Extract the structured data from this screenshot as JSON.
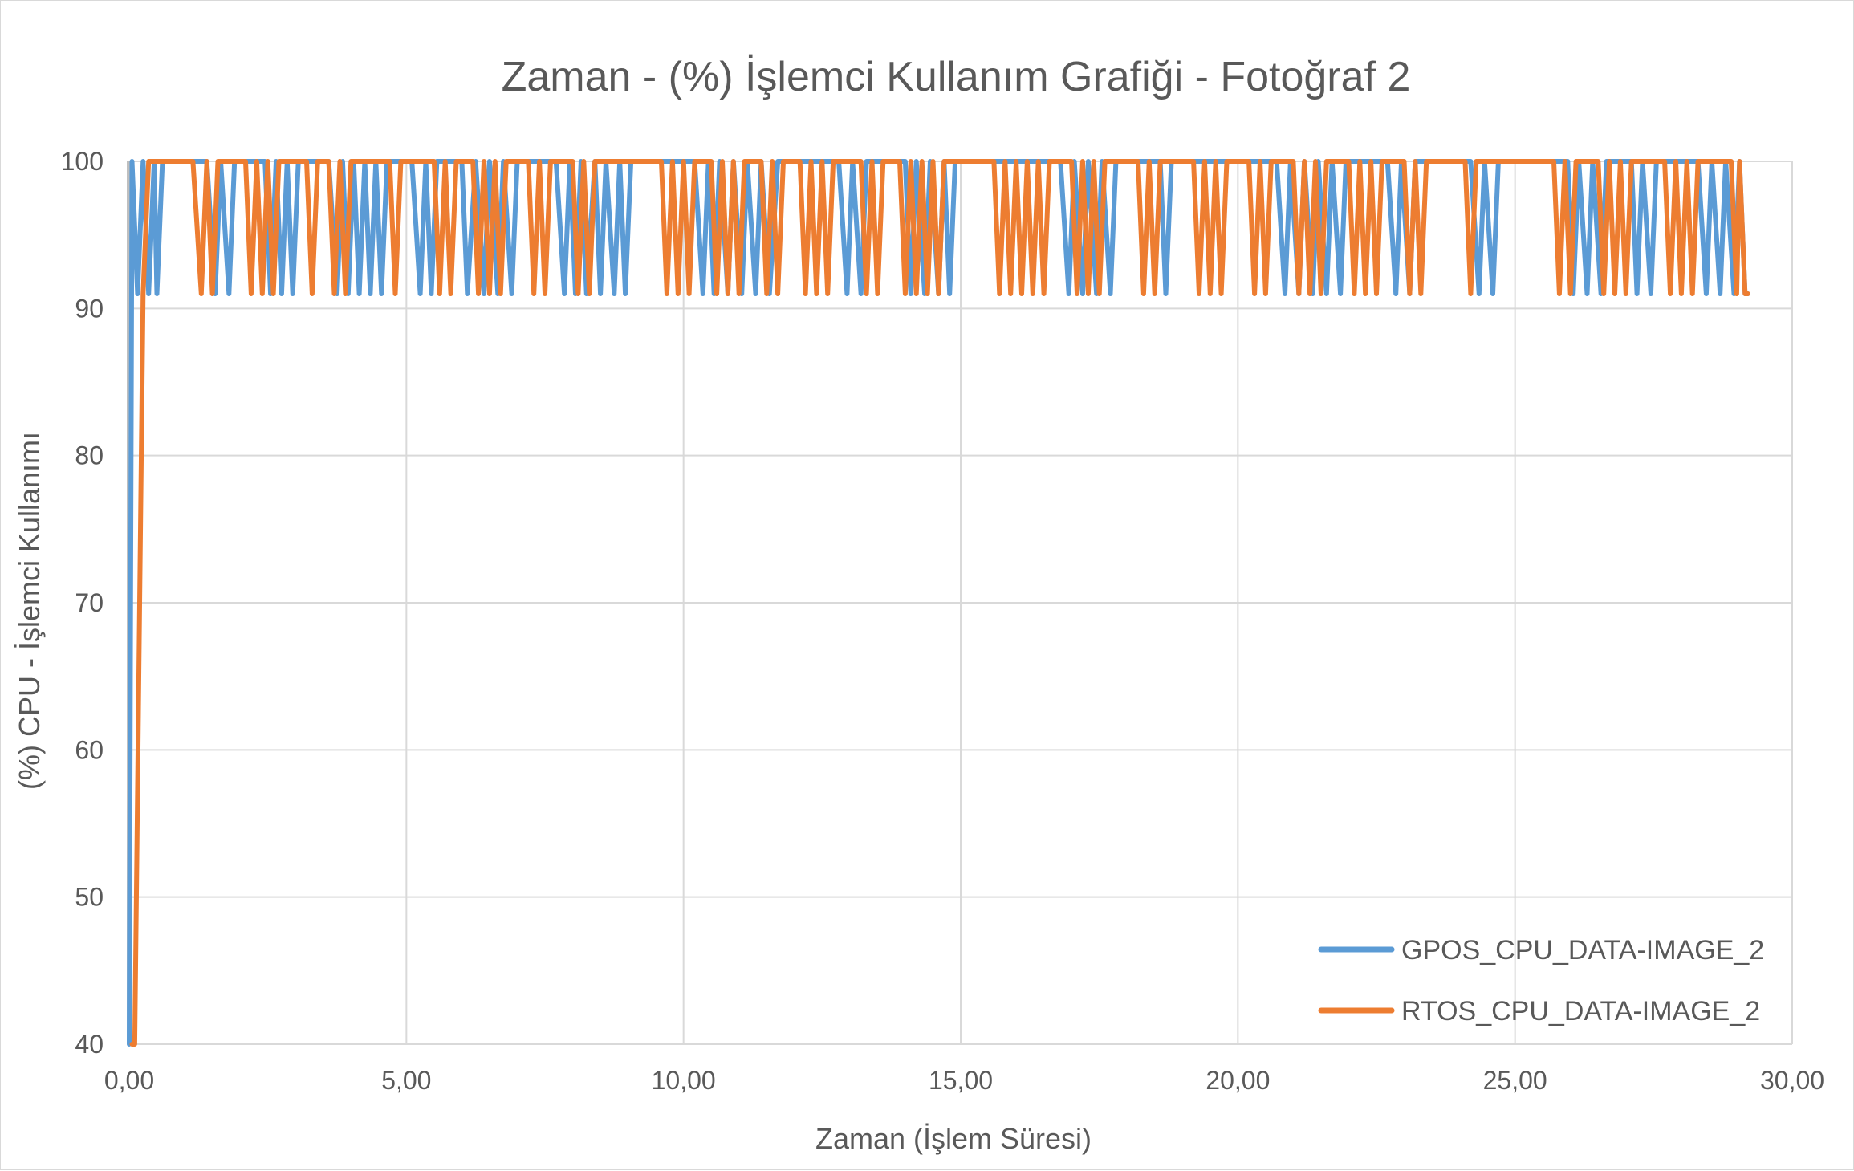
{
  "chart_data": {
    "type": "line",
    "title": "Zaman - (%) İşlemci Kullanım Grafiği - Fotoğraf 2",
    "xlabel": "Zaman (İşlem Süresi)",
    "ylabel": "(%) CPU - İşlemci Kullanımı",
    "xlim": [
      0,
      30
    ],
    "ylim": [
      40,
      100
    ],
    "x_ticks": [
      "0,00",
      "5,00",
      "10,00",
      "15,00",
      "20,00",
      "25,00",
      "30,00"
    ],
    "y_ticks": [
      "40",
      "50",
      "60",
      "70",
      "80",
      "90",
      "100"
    ],
    "grid": true,
    "legend_position": "bottom-right",
    "series": [
      {
        "name": "GPOS_CPU_DATA-IMAGE_2",
        "color": "#5b9bd5",
        "points": [
          [
            0.0,
            40
          ],
          [
            0.05,
            100
          ],
          [
            0.15,
            91
          ],
          [
            0.25,
            100
          ],
          [
            0.35,
            91
          ],
          [
            0.45,
            100
          ],
          [
            0.5,
            91
          ],
          [
            0.6,
            100
          ],
          [
            1.4,
            100
          ],
          [
            1.55,
            91
          ],
          [
            1.65,
            100
          ],
          [
            1.8,
            91
          ],
          [
            1.9,
            100
          ],
          [
            2.0,
            100
          ],
          [
            2.45,
            100
          ],
          [
            2.55,
            91
          ],
          [
            2.65,
            100
          ],
          [
            2.75,
            91
          ],
          [
            2.85,
            100
          ],
          [
            2.95,
            91
          ],
          [
            3.05,
            100
          ],
          [
            3.6,
            100
          ],
          [
            3.75,
            91
          ],
          [
            3.85,
            100
          ],
          [
            3.95,
            91
          ],
          [
            4.05,
            100
          ],
          [
            4.15,
            91
          ],
          [
            4.25,
            100
          ],
          [
            4.35,
            91
          ],
          [
            4.45,
            100
          ],
          [
            4.55,
            91
          ],
          [
            4.65,
            100
          ],
          [
            5.1,
            100
          ],
          [
            5.25,
            91
          ],
          [
            5.35,
            100
          ],
          [
            5.45,
            91
          ],
          [
            5.55,
            100
          ],
          [
            6.0,
            100
          ],
          [
            6.1,
            91
          ],
          [
            6.25,
            100
          ],
          [
            6.4,
            91
          ],
          [
            6.5,
            100
          ],
          [
            6.65,
            91
          ],
          [
            6.75,
            100
          ],
          [
            6.9,
            91
          ],
          [
            7.0,
            100
          ],
          [
            7.7,
            100
          ],
          [
            7.85,
            91
          ],
          [
            7.95,
            100
          ],
          [
            8.05,
            91
          ],
          [
            8.15,
            100
          ],
          [
            8.25,
            91
          ],
          [
            8.4,
            100
          ],
          [
            8.5,
            91
          ],
          [
            8.6,
            100
          ],
          [
            8.75,
            91
          ],
          [
            8.85,
            100
          ],
          [
            8.95,
            91
          ],
          [
            9.05,
            100
          ],
          [
            10.2,
            100
          ],
          [
            10.35,
            91
          ],
          [
            10.45,
            100
          ],
          [
            10.55,
            91
          ],
          [
            10.65,
            100
          ],
          [
            10.8,
            91
          ],
          [
            10.9,
            100
          ],
          [
            11.05,
            91
          ],
          [
            11.15,
            100
          ],
          [
            11.3,
            91
          ],
          [
            11.4,
            100
          ],
          [
            11.55,
            91
          ],
          [
            11.7,
            100
          ],
          [
            12.8,
            100
          ],
          [
            12.95,
            91
          ],
          [
            13.05,
            100
          ],
          [
            13.2,
            91
          ],
          [
            13.3,
            100
          ],
          [
            14.0,
            100
          ],
          [
            14.1,
            91
          ],
          [
            14.2,
            100
          ],
          [
            14.35,
            91
          ],
          [
            14.45,
            100
          ],
          [
            14.6,
            91
          ],
          [
            14.7,
            100
          ],
          [
            14.8,
            91
          ],
          [
            14.9,
            100
          ],
          [
            16.8,
            100
          ],
          [
            16.95,
            91
          ],
          [
            17.05,
            100
          ],
          [
            17.2,
            91
          ],
          [
            17.3,
            100
          ],
          [
            17.45,
            91
          ],
          [
            17.55,
            100
          ],
          [
            17.7,
            91
          ],
          [
            17.8,
            100
          ],
          [
            18.6,
            100
          ],
          [
            18.7,
            91
          ],
          [
            18.8,
            100
          ],
          [
            20.7,
            100
          ],
          [
            20.85,
            91
          ],
          [
            20.95,
            100
          ],
          [
            21.1,
            91
          ],
          [
            21.2,
            100
          ],
          [
            21.35,
            91
          ],
          [
            21.45,
            100
          ],
          [
            21.6,
            91
          ],
          [
            21.7,
            100
          ],
          [
            21.85,
            91
          ],
          [
            21.95,
            100
          ],
          [
            22.7,
            100
          ],
          [
            22.85,
            91
          ],
          [
            22.95,
            100
          ],
          [
            23.1,
            91
          ],
          [
            23.2,
            100
          ],
          [
            24.2,
            100
          ],
          [
            24.35,
            91
          ],
          [
            24.45,
            100
          ],
          [
            24.6,
            91
          ],
          [
            24.7,
            100
          ],
          [
            25.95,
            100
          ],
          [
            26.05,
            91
          ],
          [
            26.15,
            100
          ],
          [
            26.3,
            91
          ],
          [
            26.4,
            100
          ],
          [
            26.55,
            91
          ],
          [
            26.65,
            100
          ],
          [
            27.1,
            100
          ],
          [
            27.2,
            91
          ],
          [
            27.3,
            100
          ],
          [
            27.45,
            91
          ],
          [
            27.55,
            100
          ],
          [
            28.3,
            100
          ],
          [
            28.45,
            91
          ],
          [
            28.55,
            100
          ],
          [
            28.7,
            91
          ],
          [
            28.8,
            100
          ],
          [
            28.95,
            91
          ],
          [
            29.05,
            100
          ],
          [
            29.15,
            91
          ],
          [
            29.2,
            91
          ]
        ]
      },
      {
        "name": "RTOS_CPU_DATA-IMAGE_2",
        "color": "#ed7d31",
        "points": [
          [
            0.05,
            40
          ],
          [
            0.1,
            40
          ],
          [
            0.25,
            91
          ],
          [
            0.35,
            100
          ],
          [
            1.15,
            100
          ],
          [
            1.3,
            91
          ],
          [
            1.4,
            100
          ],
          [
            1.5,
            91
          ],
          [
            1.6,
            100
          ],
          [
            2.1,
            100
          ],
          [
            2.2,
            91
          ],
          [
            2.3,
            100
          ],
          [
            2.4,
            91
          ],
          [
            2.5,
            100
          ],
          [
            2.6,
            91
          ],
          [
            2.7,
            100
          ],
          [
            3.2,
            100
          ],
          [
            3.3,
            91
          ],
          [
            3.4,
            100
          ],
          [
            3.6,
            100
          ],
          [
            3.7,
            91
          ],
          [
            3.8,
            100
          ],
          [
            3.9,
            91
          ],
          [
            4.0,
            100
          ],
          [
            4.7,
            100
          ],
          [
            4.8,
            91
          ],
          [
            4.9,
            100
          ],
          [
            5.5,
            100
          ],
          [
            5.6,
            91
          ],
          [
            5.7,
            100
          ],
          [
            5.8,
            91
          ],
          [
            5.9,
            100
          ],
          [
            6.2,
            100
          ],
          [
            6.3,
            91
          ],
          [
            6.4,
            100
          ],
          [
            6.5,
            91
          ],
          [
            6.6,
            100
          ],
          [
            6.7,
            91
          ],
          [
            6.8,
            100
          ],
          [
            7.2,
            100
          ],
          [
            7.3,
            91
          ],
          [
            7.4,
            100
          ],
          [
            7.5,
            91
          ],
          [
            7.6,
            100
          ],
          [
            8.0,
            100
          ],
          [
            8.1,
            91
          ],
          [
            8.2,
            100
          ],
          [
            8.3,
            91
          ],
          [
            8.4,
            100
          ],
          [
            9.6,
            100
          ],
          [
            9.7,
            91
          ],
          [
            9.8,
            100
          ],
          [
            9.9,
            91
          ],
          [
            10.0,
            100
          ],
          [
            10.1,
            91
          ],
          [
            10.2,
            100
          ],
          [
            10.5,
            100
          ],
          [
            10.6,
            91
          ],
          [
            10.7,
            100
          ],
          [
            10.8,
            91
          ],
          [
            10.9,
            100
          ],
          [
            11.0,
            91
          ],
          [
            11.1,
            100
          ],
          [
            11.4,
            100
          ],
          [
            11.5,
            91
          ],
          [
            11.6,
            100
          ],
          [
            11.7,
            91
          ],
          [
            11.8,
            100
          ],
          [
            12.1,
            100
          ],
          [
            12.2,
            91
          ],
          [
            12.3,
            100
          ],
          [
            12.4,
            91
          ],
          [
            12.5,
            100
          ],
          [
            12.6,
            91
          ],
          [
            12.7,
            100
          ],
          [
            13.2,
            100
          ],
          [
            13.3,
            91
          ],
          [
            13.4,
            100
          ],
          [
            13.5,
            91
          ],
          [
            13.6,
            100
          ],
          [
            13.9,
            100
          ],
          [
            14.0,
            91
          ],
          [
            14.1,
            100
          ],
          [
            14.2,
            91
          ],
          [
            14.3,
            100
          ],
          [
            14.4,
            91
          ],
          [
            14.5,
            100
          ],
          [
            14.6,
            91
          ],
          [
            14.7,
            100
          ],
          [
            15.6,
            100
          ],
          [
            15.7,
            91
          ],
          [
            15.8,
            100
          ],
          [
            15.9,
            91
          ],
          [
            16.0,
            100
          ],
          [
            16.1,
            91
          ],
          [
            16.2,
            100
          ],
          [
            16.3,
            91
          ],
          [
            16.4,
            100
          ],
          [
            16.5,
            91
          ],
          [
            16.6,
            100
          ],
          [
            17.0,
            100
          ],
          [
            17.1,
            91
          ],
          [
            17.2,
            100
          ],
          [
            17.3,
            91
          ],
          [
            17.4,
            100
          ],
          [
            17.5,
            91
          ],
          [
            17.6,
            100
          ],
          [
            18.2,
            100
          ],
          [
            18.3,
            91
          ],
          [
            18.4,
            100
          ],
          [
            18.5,
            91
          ],
          [
            18.6,
            100
          ],
          [
            19.2,
            100
          ],
          [
            19.3,
            91
          ],
          [
            19.4,
            100
          ],
          [
            19.5,
            91
          ],
          [
            19.6,
            100
          ],
          [
            19.7,
            91
          ],
          [
            19.8,
            100
          ],
          [
            20.2,
            100
          ],
          [
            20.3,
            91
          ],
          [
            20.4,
            100
          ],
          [
            20.5,
            91
          ],
          [
            20.6,
            100
          ],
          [
            21.0,
            100
          ],
          [
            21.1,
            91
          ],
          [
            21.2,
            100
          ],
          [
            21.3,
            91
          ],
          [
            21.4,
            100
          ],
          [
            21.5,
            91
          ],
          [
            21.6,
            100
          ],
          [
            22.0,
            100
          ],
          [
            22.1,
            91
          ],
          [
            22.2,
            100
          ],
          [
            22.3,
            91
          ],
          [
            22.4,
            100
          ],
          [
            22.5,
            91
          ],
          [
            22.6,
            100
          ],
          [
            23.0,
            100
          ],
          [
            23.1,
            91
          ],
          [
            23.2,
            100
          ],
          [
            23.3,
            91
          ],
          [
            23.4,
            100
          ],
          [
            24.1,
            100
          ],
          [
            24.2,
            91
          ],
          [
            24.3,
            100
          ],
          [
            25.7,
            100
          ],
          [
            25.8,
            91
          ],
          [
            25.9,
            100
          ],
          [
            26.0,
            91
          ],
          [
            26.1,
            100
          ],
          [
            26.5,
            100
          ],
          [
            26.6,
            91
          ],
          [
            26.7,
            100
          ],
          [
            26.8,
            91
          ],
          [
            26.9,
            100
          ],
          [
            27.0,
            91
          ],
          [
            27.1,
            100
          ],
          [
            27.7,
            100
          ],
          [
            27.8,
            91
          ],
          [
            27.9,
            100
          ],
          [
            28.0,
            91
          ],
          [
            28.1,
            100
          ],
          [
            28.2,
            91
          ],
          [
            28.3,
            100
          ],
          [
            28.9,
            100
          ],
          [
            29.0,
            91
          ],
          [
            29.05,
            100
          ],
          [
            29.15,
            91
          ],
          [
            29.2,
            91
          ]
        ]
      }
    ]
  }
}
